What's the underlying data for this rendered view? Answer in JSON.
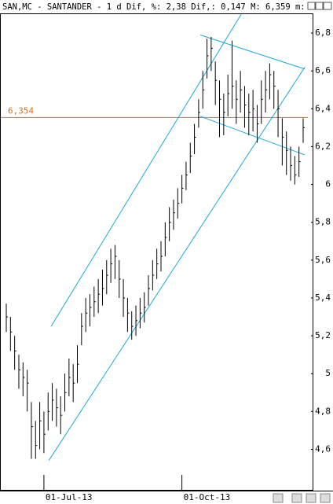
{
  "chart_data": {
    "type": "ohlc",
    "title": "SAN,MC - SANTANDER -  1 d Dif, %: 2,38 Dif,: 0,147 M: 6,359 m: ",
    "categories": [
      null,
      null,
      null,
      null,
      null,
      null,
      null,
      null,
      null,
      "01-Jul-13",
      null,
      null,
      null,
      null,
      null,
      null,
      null,
      null,
      null,
      null,
      null,
      null,
      null,
      null,
      null,
      null,
      null,
      null,
      null,
      null,
      null,
      null,
      null,
      null,
      null,
      null,
      null,
      null,
      null,
      null,
      null,
      null,
      "01-Oct-13",
      null,
      null,
      null,
      null,
      null,
      null,
      null,
      null,
      null,
      null,
      null,
      null,
      null,
      null,
      null,
      null,
      null,
      null,
      null,
      null,
      null,
      null,
      null,
      null,
      null,
      null,
      null,
      null,
      null
    ],
    "high": [
      5.37,
      5.3,
      5.2,
      5.1,
      5.06,
      5.02,
      4.85,
      4.75,
      4.85,
      4.8,
      4.9,
      4.95,
      4.92,
      4.88,
      5.0,
      5.08,
      5.05,
      5.15,
      5.32,
      5.4,
      5.42,
      5.46,
      5.5,
      5.55,
      5.6,
      5.66,
      5.68,
      5.6,
      5.5,
      5.4,
      5.33,
      5.36,
      5.4,
      5.43,
      5.52,
      5.6,
      5.66,
      5.7,
      5.8,
      5.88,
      5.92,
      5.98,
      6.05,
      6.12,
      6.22,
      6.32,
      6.45,
      6.6,
      6.77,
      6.78,
      6.65,
      6.55,
      6.48,
      6.58,
      6.76,
      6.55,
      6.6,
      6.52,
      6.48,
      6.5,
      6.42,
      6.55,
      6.6,
      6.64,
      6.6,
      6.5,
      6.35,
      6.28,
      6.2,
      6.15,
      6.2,
      6.35
    ],
    "low": [
      5.22,
      5.12,
      5.02,
      4.92,
      4.88,
      4.8,
      4.55,
      4.55,
      4.6,
      4.58,
      4.7,
      4.75,
      4.72,
      4.68,
      4.8,
      4.88,
      4.85,
      4.95,
      5.15,
      5.22,
      5.25,
      5.3,
      5.32,
      5.36,
      5.42,
      5.48,
      5.5,
      5.4,
      5.3,
      5.22,
      5.18,
      5.2,
      5.24,
      5.27,
      5.36,
      5.44,
      5.5,
      5.54,
      5.62,
      5.7,
      5.76,
      5.82,
      5.9,
      5.97,
      6.06,
      6.16,
      6.3,
      6.4,
      6.56,
      6.6,
      6.42,
      6.25,
      6.26,
      6.36,
      6.4,
      6.32,
      6.38,
      6.3,
      6.26,
      6.28,
      6.22,
      6.32,
      6.38,
      6.45,
      6.4,
      6.25,
      6.1,
      6.05,
      6.02,
      6.0,
      6.04,
      6.22
    ],
    "close": [
      5.3,
      5.22,
      5.12,
      5.02,
      4.98,
      4.95,
      4.72,
      4.62,
      4.75,
      4.68,
      4.8,
      4.86,
      4.82,
      4.78,
      4.9,
      4.98,
      4.95,
      5.05,
      5.25,
      5.32,
      5.35,
      5.38,
      5.42,
      5.45,
      5.52,
      5.58,
      5.62,
      5.5,
      5.4,
      5.32,
      5.25,
      5.28,
      5.32,
      5.35,
      5.45,
      5.52,
      5.58,
      5.62,
      5.72,
      5.8,
      5.85,
      5.9,
      5.98,
      6.05,
      6.15,
      6.25,
      6.38,
      6.5,
      6.68,
      6.72,
      6.55,
      6.45,
      6.38,
      6.48,
      6.52,
      6.45,
      6.5,
      6.42,
      6.38,
      6.4,
      6.32,
      6.45,
      6.5,
      6.58,
      6.52,
      6.4,
      6.25,
      6.18,
      6.1,
      6.05,
      6.12,
      6.3
    ],
    "color": "#000000",
    "ylim": [
      4.39,
      6.9
    ],
    "yticks": [
      {
        "value": 4.6,
        "label": "4,6"
      },
      {
        "value": 4.8,
        "label": "4,8"
      },
      5,
      {
        "value": 5.2,
        "label": "5,2"
      },
      {
        "value": 5.4,
        "label": "5,4"
      },
      {
        "value": 5.6,
        "label": "5,6"
      },
      {
        "value": 5.8,
        "label": "5,8"
      },
      6,
      {
        "value": 6.2,
        "label": "6,2"
      },
      {
        "value": 6.4,
        "label": "6,4"
      },
      {
        "value": 6.6,
        "label": "6,6"
      },
      {
        "value": 6.8,
        "label": "6,8"
      }
    ],
    "trend_lines": [
      {
        "x": [
          10.7,
          56.2
        ],
        "y": [
          5.249,
          6.9
        ]
      },
      {
        "x": [
          10.2,
          71.4
        ],
        "y": [
          4.542,
          6.62
        ]
      },
      {
        "x": [
          46.4,
          71.4
        ],
        "y": [
          6.79,
          6.61
        ]
      },
      {
        "x": [
          46.4,
          71.4
        ],
        "y": [
          6.36,
          6.156
        ]
      }
    ],
    "trend_color": "#1ea8d8",
    "hline": {
      "value": 6.354,
      "label": "6,354",
      "color": "#e07020"
    }
  }
}
